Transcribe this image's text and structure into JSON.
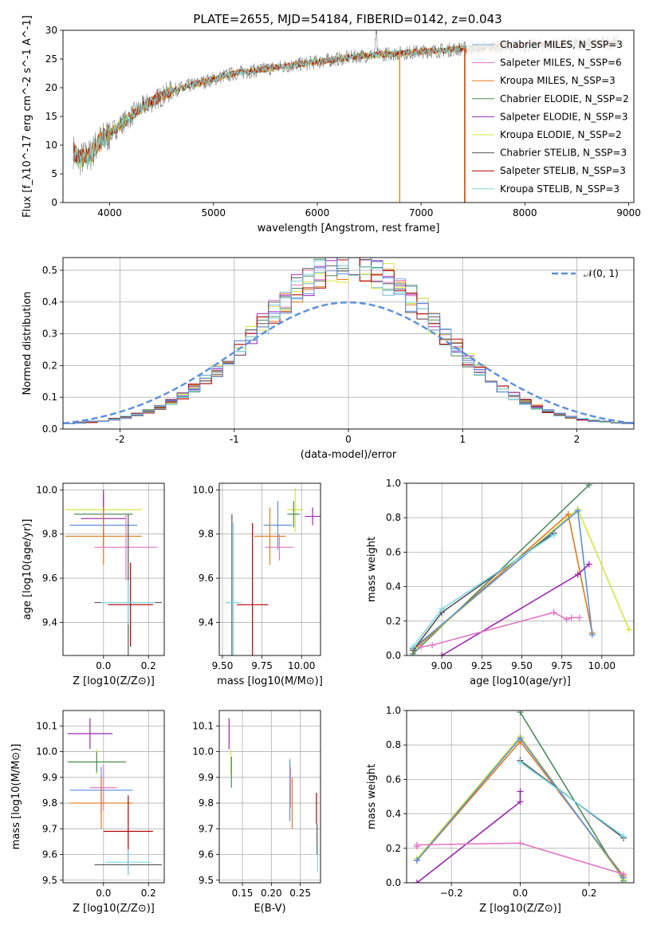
{
  "figure": {
    "title": "PLATE=2655, MJD=54184, FIBERID=0142, z=0.043"
  },
  "palette": {
    "chabrier_miles": "#7ab8d8",
    "salpeter_miles": "#e377c2",
    "kroupa_miles": "#e07b1a",
    "chabrier_elodie": "#4c8c5c",
    "salpeter_elodie": "#9b27b0",
    "kroupa_elodie": "#d4e83a",
    "chabrier_stelib": "#555555",
    "salpeter_stelib": "#b00000",
    "kroupa_stelib": "#7ed8e6",
    "fit_blue": "#5b8ee0",
    "gauss": "#5b8ee0",
    "data": "#808080"
  },
  "chart_data": [
    {
      "id": "spectrum",
      "type": "line",
      "xlabel": "wavelength [Angstrom, rest frame]",
      "ylabel": "Flux [f_λ10^-17 erg cm^-2 s^-1 A^-1]",
      "xlim": [
        3550,
        9050
      ],
      "ylim": [
        0,
        30
      ],
      "xticks": [
        4000,
        5000,
        6000,
        7000,
        8000,
        9000
      ],
      "yticks": [
        0,
        5,
        10,
        15,
        20,
        25,
        30
      ],
      "grid": false,
      "legend_position": "upper right",
      "legend": [
        {
          "text": "Chabrier MILES, N_SSP=3",
          "color": "chabrier_miles"
        },
        {
          "text": "Salpeter MILES, N_SSP=6",
          "color": "salpeter_miles"
        },
        {
          "text": "Kroupa MILES, N_SSP=3",
          "color": "kroupa_miles"
        },
        {
          "text": "Chabrier ELODIE, N_SSP=2",
          "color": "chabrier_elodie"
        },
        {
          "text": "Salpeter ELODIE, N_SSP=3",
          "color": "salpeter_elodie"
        },
        {
          "text": "Kroupa ELODIE, N_SSP=2",
          "color": "kroupa_elodie"
        },
        {
          "text": "Chabrier STELIB, N_SSP=3",
          "color": "chabrier_stelib"
        },
        {
          "text": "Salpeter STELIB, N_SSP=3",
          "color": "salpeter_stelib"
        },
        {
          "text": "Kroupa STELIB, N_SSP=3",
          "color": "kroupa_stelib"
        }
      ],
      "continuum": {
        "x": [
          3650,
          3700,
          3800,
          3900,
          4000,
          4100,
          4200,
          4300,
          4400,
          4500,
          4600,
          4800,
          5000,
          5200,
          5400,
          5600,
          5800,
          6000,
          6200,
          6400,
          6600,
          6800,
          7000,
          7200,
          7400,
          7600,
          7800,
          8000,
          8200,
          8400,
          8600,
          8800,
          8900
        ],
        "y": [
          9.0,
          7.5,
          8.0,
          10.5,
          12.0,
          13.5,
          15.0,
          16.5,
          17.5,
          18.5,
          19.5,
          20.5,
          21.5,
          22.5,
          23.0,
          23.5,
          24.0,
          24.5,
          25.0,
          25.5,
          25.8,
          26.0,
          26.3,
          26.5,
          26.8,
          27.0,
          27.2,
          27.3,
          27.4,
          27.6,
          27.7,
          27.8,
          27.9
        ]
      },
      "drops": [
        {
          "x": 6790,
          "color": "kroupa_elodie"
        },
        {
          "x": 6795,
          "color": "kroupa_miles"
        },
        {
          "x": 7420,
          "color": "salpeter_stelib"
        },
        {
          "x": 7425,
          "color": "kroupa_miles"
        }
      ]
    },
    {
      "id": "residuals",
      "type": "histogram",
      "xlabel": "(data-model)/error",
      "ylabel": "Normed distribution",
      "xlim": [
        -2.5,
        2.5
      ],
      "ylim": [
        0,
        0.54
      ],
      "xticks": [
        -2,
        -1,
        0,
        1,
        2
      ],
      "yticks": [
        0.0,
        0.1,
        0.2,
        0.3,
        0.4,
        0.5
      ],
      "grid": true,
      "legend_position": "upper right",
      "legend": [
        {
          "text": "𝒩(0, 1)",
          "color": "gauss"
        }
      ],
      "bin_width": 0.1
    },
    {
      "id": "z-age",
      "type": "scatter",
      "xlabel": "Z [log10(Z/Z⊙)]",
      "ylabel": "age [log10(age/yr)]",
      "xlim": [
        -0.18,
        0.27
      ],
      "ylim": [
        9.25,
        10.03
      ],
      "xticks": [
        0.0,
        0.2
      ],
      "xticklabels": [
        "0.0",
        "0.2"
      ],
      "yticks": [
        9.4,
        9.6,
        9.8,
        10.0
      ],
      "yticklabels": [
        "9.4",
        "9.6",
        "9.8",
        "10.0"
      ],
      "grid": true,
      "points": [
        {
          "x": 0.0,
          "y": 9.91,
          "xerr": 0.17,
          "yerr": 0.09,
          "color": "kroupa_elodie"
        },
        {
          "x": 0.0,
          "y": 9.89,
          "xerr": 0.13,
          "yerr": 0.09,
          "color": "chabrier_elodie"
        },
        {
          "x": 0.0,
          "y": 9.87,
          "xerr": 0.1,
          "yerr": 0.13,
          "color": "salpeter_elodie"
        },
        {
          "x": 0.0,
          "y": 9.84,
          "xerr": 0.15,
          "yerr": 0.08,
          "color": "fit_blue"
        },
        {
          "x": 0.0,
          "y": 9.79,
          "xerr": 0.17,
          "yerr": 0.13,
          "color": "kroupa_miles"
        },
        {
          "x": 0.1,
          "y": 9.74,
          "xerr": 0.14,
          "yerr": 0.15,
          "color": "salpeter_miles"
        },
        {
          "x": 0.11,
          "y": 9.49,
          "xerr": 0.15,
          "yerr": 0.4,
          "color": "chabrier_stelib"
        },
        {
          "x": 0.12,
          "y": 9.48,
          "xerr": 0.1,
          "yerr": 0.19,
          "color": "salpeter_stelib"
        },
        {
          "x": 0.11,
          "y": 9.49,
          "xerr": 0.12,
          "yerr": 0.1,
          "color": "kroupa_stelib"
        }
      ]
    },
    {
      "id": "mass-age",
      "type": "scatter",
      "xlabel": "mass [log10(M/M⊙)]",
      "ylabel": "",
      "xlim": [
        9.48,
        10.12
      ],
      "ylim": [
        9.25,
        10.03
      ],
      "xticks": [
        9.5,
        9.75,
        10.0
      ],
      "xticklabels": [
        "9.50",
        "9.75",
        "10.00"
      ],
      "yticks": [
        9.4,
        9.6,
        9.8,
        10.0
      ],
      "yticklabels": [
        "9.4",
        "9.6",
        "9.8",
        "10.0"
      ],
      "grid": true,
      "points": [
        {
          "x": 10.07,
          "y": 9.88,
          "xerr": 0.05,
          "yerr": 0.04,
          "color": "salpeter_elodie"
        },
        {
          "x": 9.96,
          "y": 9.91,
          "xerr": 0.05,
          "yerr": 0.1,
          "color": "kroupa_elodie"
        },
        {
          "x": 9.95,
          "y": 9.89,
          "xerr": 0.04,
          "yerr": 0.06,
          "color": "chabrier_elodie"
        },
        {
          "x": 9.85,
          "y": 9.84,
          "xerr": 0.09,
          "yerr": 0.11,
          "color": "fit_blue"
        },
        {
          "x": 9.8,
          "y": 9.79,
          "xerr": 0.1,
          "yerr": 0.13,
          "color": "kroupa_miles"
        },
        {
          "x": 9.86,
          "y": 9.74,
          "xerr": 0.09,
          "yerr": 0.06,
          "color": "salpeter_miles"
        },
        {
          "x": 9.56,
          "y": 9.49,
          "xerr": 0.04,
          "yerr": 0.4,
          "color": "chabrier_stelib"
        },
        {
          "x": 9.69,
          "y": 9.48,
          "xerr": 0.1,
          "yerr": 0.37,
          "color": "salpeter_stelib"
        },
        {
          "x": 9.57,
          "y": 9.49,
          "xerr": 0.05,
          "yerr": 0.36,
          "color": "kroupa_stelib"
        }
      ]
    },
    {
      "id": "age-weight",
      "type": "line",
      "xlabel": "age [log10(age/yr)]",
      "ylabel": "mass weight",
      "xlim": [
        8.78,
        10.2
      ],
      "ylim": [
        0,
        1.0
      ],
      "xticks": [
        9.0,
        9.25,
        9.5,
        9.75,
        10.0
      ],
      "xticklabels": [
        "9.00",
        "9.25",
        "9.50",
        "9.75",
        "10.00"
      ],
      "yticks": [
        0.0,
        0.2,
        0.4,
        0.6,
        0.8,
        1.0
      ],
      "yticklabels": [
        "0.0",
        "0.2",
        "0.4",
        "0.6",
        "0.8",
        "1.0"
      ],
      "grid": true,
      "series": [
        {
          "color": "chabrier_elodie",
          "x": [
            8.82,
            9.92
          ],
          "y": [
            0.01,
            0.99
          ]
        },
        {
          "color": "kroupa_elodie",
          "x": [
            8.82,
            9.85,
            10.17
          ],
          "y": [
            0.03,
            0.85,
            0.15
          ]
        },
        {
          "color": "kroupa_miles",
          "x": [
            8.82,
            9.79,
            9.94
          ],
          "y": [
            0.03,
            0.82,
            0.13
          ]
        },
        {
          "color": "fit_blue",
          "x": [
            8.82,
            9.85,
            9.94
          ],
          "y": [
            0.04,
            0.84,
            0.12
          ]
        },
        {
          "color": "chabrier_stelib",
          "x": [
            8.82,
            9.0,
            9.7
          ],
          "y": [
            0.03,
            0.25,
            0.71
          ]
        },
        {
          "color": "kroupa_stelib",
          "x": [
            8.82,
            9.0,
            9.7
          ],
          "y": [
            0.05,
            0.27,
            0.7
          ]
        },
        {
          "color": "salpeter_elodie",
          "x": [
            9.0,
            9.85,
            9.92
          ],
          "y": [
            0.0,
            0.47,
            0.53
          ]
        },
        {
          "color": "salpeter_miles",
          "x": [
            8.87,
            8.94,
            9.7,
            9.78,
            9.81,
            9.86
          ],
          "y": [
            0.05,
            0.06,
            0.25,
            0.21,
            0.22,
            0.22
          ]
        }
      ]
    },
    {
      "id": "z-mass",
      "type": "scatter",
      "xlabel": "Z [log10(Z/Z⊙)]",
      "ylabel": "mass [log10(M/M⊙)]",
      "xlim": [
        -0.18,
        0.27
      ],
      "ylim": [
        9.49,
        10.16
      ],
      "xticks": [
        0.0,
        0.2
      ],
      "xticklabels": [
        "0.0",
        "0.2"
      ],
      "yticks": [
        9.5,
        9.6,
        9.7,
        9.8,
        9.9,
        10.0,
        10.1
      ],
      "yticklabels": [
        "9.5",
        "9.6",
        "9.7",
        "9.8",
        "9.9",
        "10.0",
        "10.1"
      ],
      "grid": true,
      "points": [
        {
          "x": -0.06,
          "y": 10.07,
          "xerr": 0.1,
          "yerr": 0.06,
          "color": "salpeter_elodie"
        },
        {
          "x": -0.03,
          "y": 9.96,
          "xerr": 0.13,
          "yerr": 0.05,
          "color": "kroupa_elodie"
        },
        {
          "x": -0.03,
          "y": 9.96,
          "xerr": 0.13,
          "yerr": 0.04,
          "color": "chabrier_elodie"
        },
        {
          "x": 0.0,
          "y": 9.86,
          "xerr": 0.06,
          "yerr": 0.09,
          "color": "salpeter_miles"
        },
        {
          "x": -0.01,
          "y": 9.85,
          "xerr": 0.14,
          "yerr": 0.09,
          "color": "fit_blue"
        },
        {
          "x": -0.01,
          "y": 9.8,
          "xerr": 0.14,
          "yerr": 0.1,
          "color": "kroupa_miles"
        },
        {
          "x": 0.11,
          "y": 9.69,
          "xerr": 0.11,
          "yerr": 0.14,
          "color": "salpeter_stelib"
        },
        {
          "x": 0.11,
          "y": 9.56,
          "xerr": 0.15,
          "yerr": 0.04,
          "color": "chabrier_stelib"
        },
        {
          "x": 0.11,
          "y": 9.57,
          "xerr": 0.1,
          "yerr": 0.05,
          "color": "kroupa_stelib"
        }
      ]
    },
    {
      "id": "ebv-mass",
      "type": "scatter",
      "xlabel": "E(B-V)",
      "ylabel": "",
      "xlim": [
        0.11,
        0.285
      ],
      "ylim": [
        9.49,
        10.16
      ],
      "xticks": [
        0.15,
        0.2,
        0.25
      ],
      "xticklabels": [
        "0.15",
        "0.20",
        "0.25"
      ],
      "yticks": [
        9.5,
        9.6,
        9.7,
        9.8,
        9.9,
        10.0,
        10.1
      ],
      "yticklabels": [
        "9.5",
        "9.6",
        "9.7",
        "9.8",
        "9.9",
        "10.0",
        "10.1"
      ],
      "grid": true,
      "points": [
        {
          "x": 0.127,
          "y": 10.07,
          "xerr": 0,
          "yerr": 0.06,
          "color": "salpeter_elodie"
        },
        {
          "x": 0.13,
          "y": 9.96,
          "xerr": 0,
          "yerr": 0.05,
          "color": "kroupa_elodie"
        },
        {
          "x": 0.131,
          "y": 9.92,
          "xerr": 0,
          "yerr": 0.06,
          "color": "chabrier_elodie"
        },
        {
          "x": 0.232,
          "y": 9.85,
          "xerr": 0,
          "yerr": 0.12,
          "color": "fit_blue"
        },
        {
          "x": 0.233,
          "y": 9.86,
          "xerr": 0,
          "yerr": 0.08,
          "color": "salpeter_miles"
        },
        {
          "x": 0.236,
          "y": 9.8,
          "xerr": 0,
          "yerr": 0.1,
          "color": "kroupa_miles"
        },
        {
          "x": 0.278,
          "y": 9.78,
          "xerr": 0,
          "yerr": 0.06,
          "color": "salpeter_stelib"
        },
        {
          "x": 0.279,
          "y": 9.66,
          "xerr": 0,
          "yerr": 0.06,
          "color": "chabrier_stelib"
        },
        {
          "x": 0.28,
          "y": 9.58,
          "xerr": 0,
          "yerr": 0.05,
          "color": "kroupa_stelib"
        }
      ]
    },
    {
      "id": "z-weight",
      "type": "line",
      "xlabel": "Z [log10(Z/Z⊙)]",
      "ylabel": "mass weight",
      "xlim": [
        -0.33,
        0.33
      ],
      "ylim": [
        0,
        1.0
      ],
      "xticks": [
        -0.2,
        0.0,
        0.2
      ],
      "xticklabels": [
        "−0.2",
        "0.0",
        "0.2"
      ],
      "yticks": [
        0.0,
        0.2,
        0.4,
        0.6,
        0.8,
        1.0
      ],
      "yticklabels": [
        "0.0",
        "0.2",
        "0.4",
        "0.6",
        "0.8",
        "1.0"
      ],
      "grid": true,
      "series": [
        {
          "color": "chabrier_elodie",
          "x": [
            0.0,
            0.3
          ],
          "y": [
            0.99,
            0.01
          ]
        },
        {
          "color": "kroupa_elodie",
          "x": [
            -0.3,
            0.0,
            0.3
          ],
          "y": [
            0.14,
            0.85,
            0.02
          ]
        },
        {
          "color": "kroupa_miles",
          "x": [
            -0.3,
            0.0,
            0.3
          ],
          "y": [
            0.13,
            0.82,
            0.04
          ]
        },
        {
          "color": "fit_blue",
          "x": [
            -0.3,
            0.0,
            0.3
          ],
          "y": [
            0.13,
            0.84,
            0.03
          ]
        },
        {
          "color": "chabrier_stelib",
          "x": [
            0.0,
            0.3
          ],
          "y": [
            0.71,
            0.26
          ]
        },
        {
          "color": "kroupa_stelib",
          "x": [
            0.0,
            0.3
          ],
          "y": [
            0.7,
            0.27
          ]
        },
        {
          "color": "salpeter_elodie",
          "x": [
            -0.3,
            0.0,
            0.0
          ],
          "y": [
            0.0,
            0.47,
            0.53
          ]
        },
        {
          "color": "salpeter_miles",
          "x": [
            -0.3,
            -0.3,
            0.0,
            0.3
          ],
          "y": [
            0.21,
            0.22,
            0.23,
            0.05
          ]
        }
      ]
    }
  ]
}
